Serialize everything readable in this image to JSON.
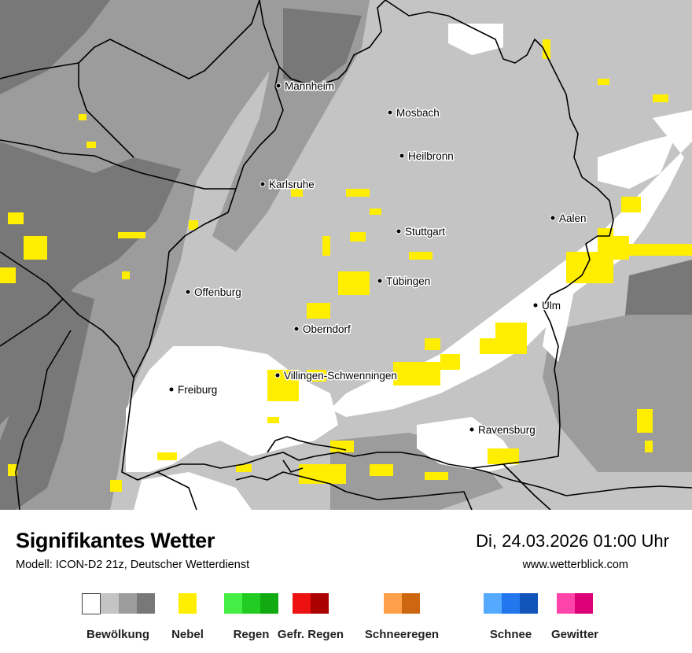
{
  "header": {
    "title": "Signifikantes Wetter",
    "model": "Modell: ICON-D2 21z, Deutscher Wetterdienst",
    "datetime": "Di, 24.03.2026 01:00 Uhr",
    "website": "www.wetterblick.com"
  },
  "cities": [
    {
      "name": "Mannheim"
    },
    {
      "name": "Mosbach"
    },
    {
      "name": "Heilbronn"
    },
    {
      "name": "Karlsruhe"
    },
    {
      "name": "Aalen"
    },
    {
      "name": "Stuttgart"
    },
    {
      "name": "Tübingen"
    },
    {
      "name": "Offenburg"
    },
    {
      "name": "Ulm"
    },
    {
      "name": "Oberndorf"
    },
    {
      "name": "Villingen-Schwenningen"
    },
    {
      "name": "Freiburg"
    },
    {
      "name": "Ravensburg"
    }
  ],
  "legend": [
    {
      "label": "Bewölkung",
      "colors": [
        "#ffffff",
        "#c4c4c4",
        "#9c9c9c",
        "#787878"
      ]
    },
    {
      "label": "Nebel",
      "colors": [
        "#ffee00"
      ]
    },
    {
      "label": "Regen",
      "colors": [
        "#44ee44",
        "#22cc22",
        "#11aa11"
      ]
    },
    {
      "label": "Gefr. Regen",
      "colors": [
        "#ee1111",
        "#aa0000"
      ]
    },
    {
      "label": "Schneeregen",
      "colors": [
        "#ffa04a",
        "#cc6611"
      ]
    },
    {
      "label": "Schnee",
      "colors": [
        "#55aaff",
        "#2277ee",
        "#1155bb"
      ]
    },
    {
      "label": "Gewitter",
      "colors": [
        "#ff44aa",
        "#dd0077"
      ]
    }
  ],
  "map_colors": {
    "clear": "#ffffff",
    "light_cloud": "#c4c4c4",
    "medium_cloud": "#9c9c9c",
    "dense_cloud": "#787878",
    "fog": "#ffee00",
    "border": "#000000"
  }
}
